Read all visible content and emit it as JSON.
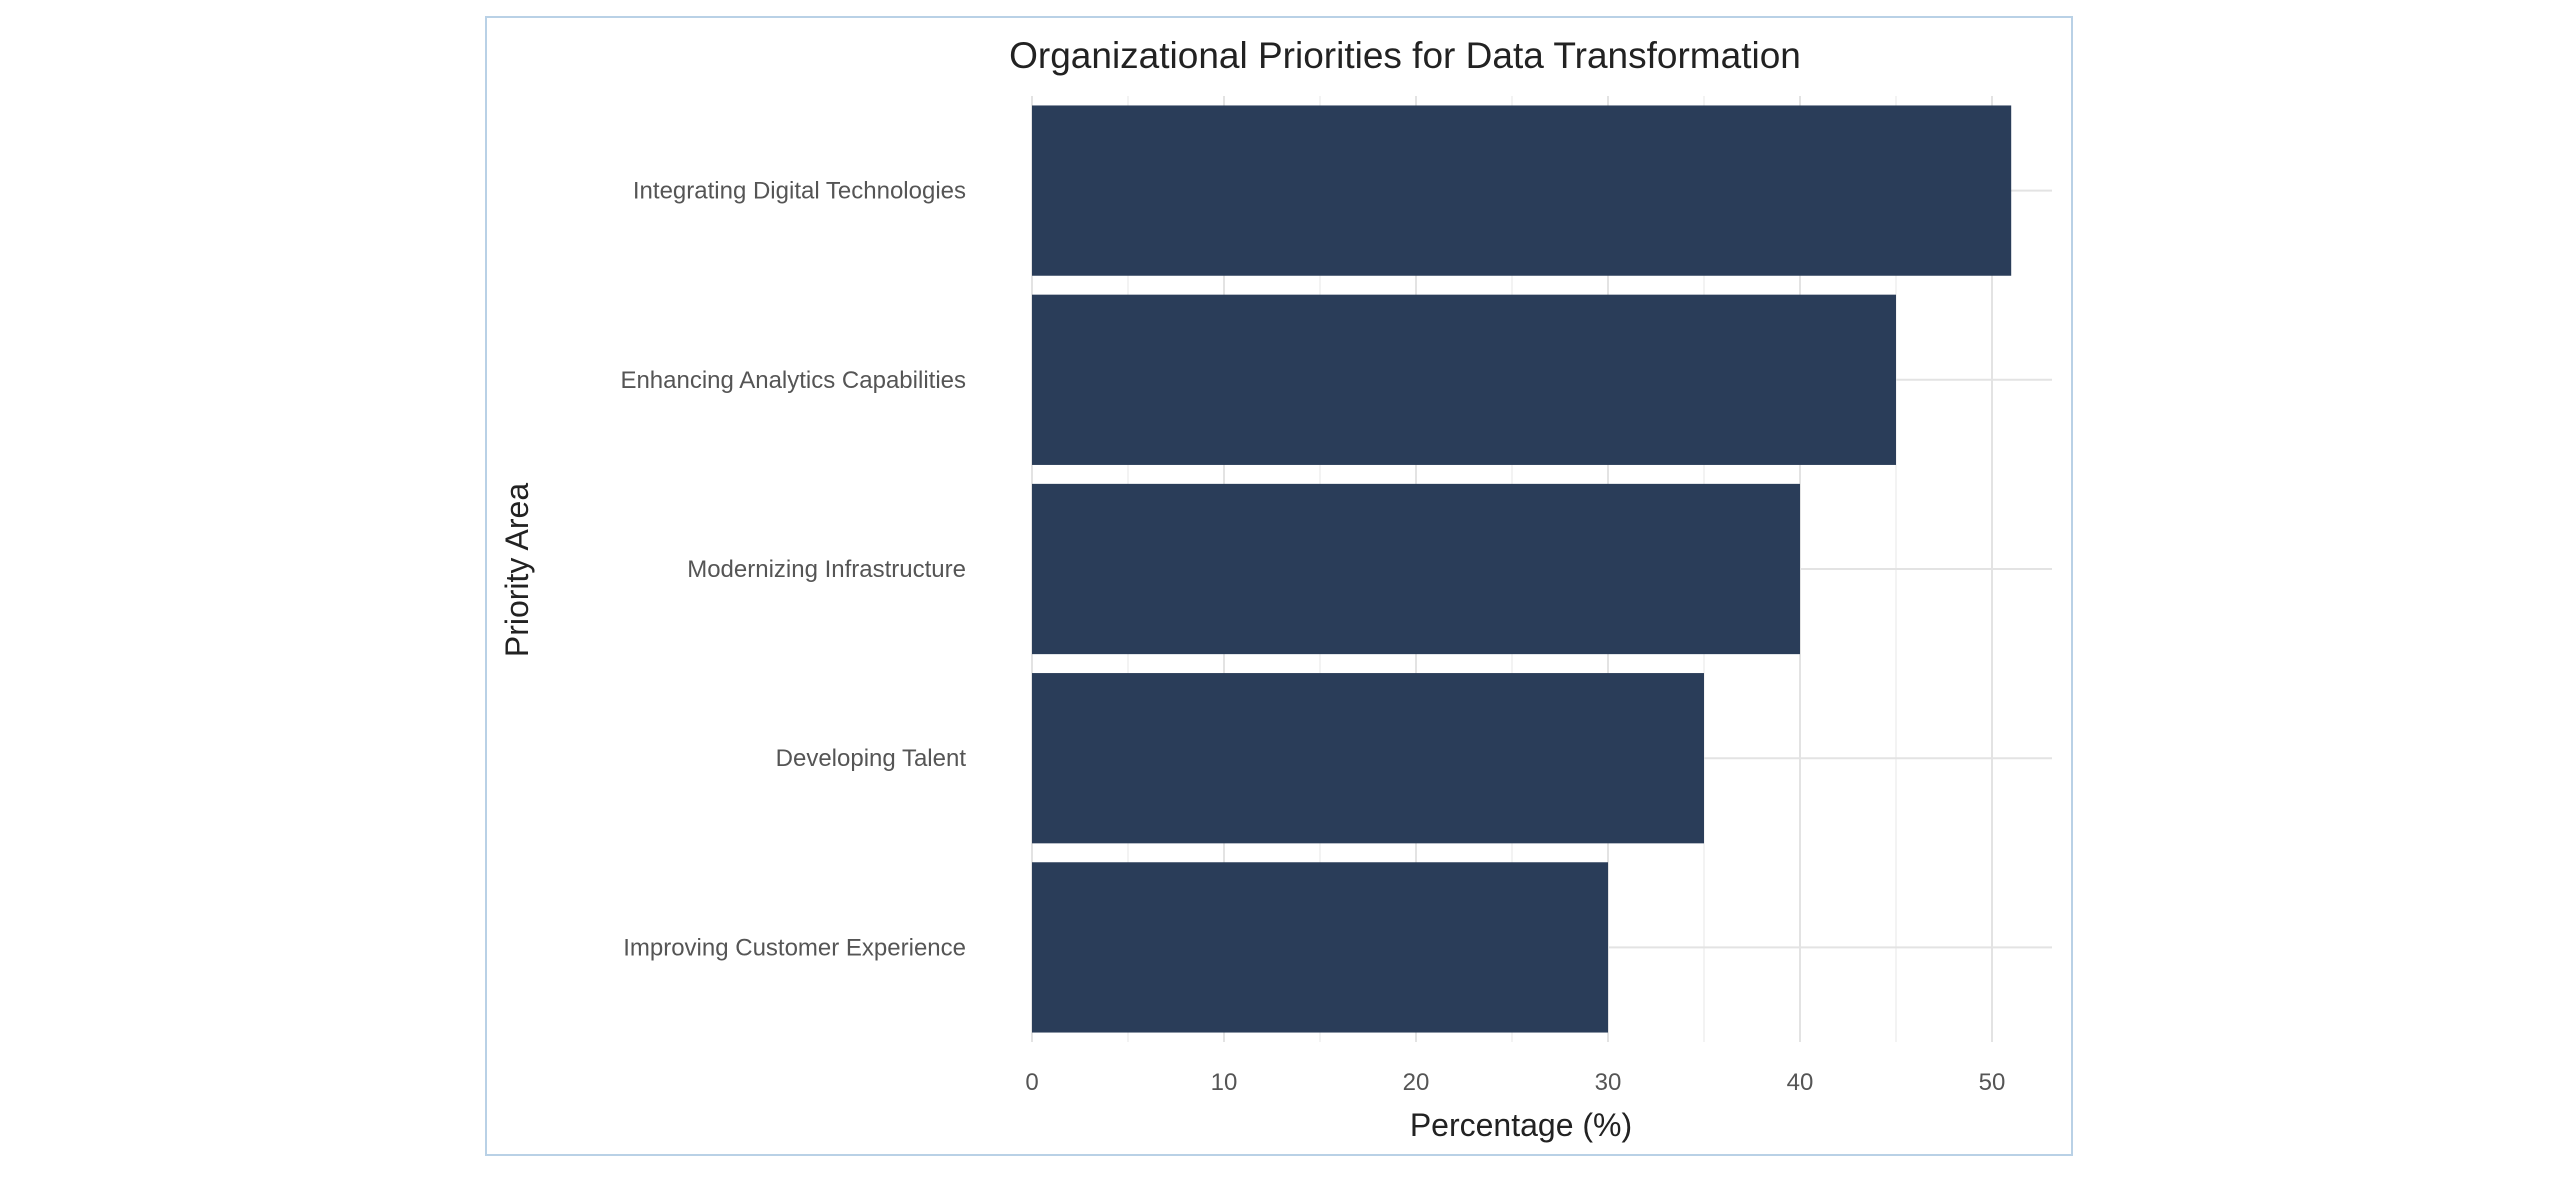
{
  "chart_data": {
    "type": "bar",
    "orientation": "horizontal",
    "title": "Organizational Priorities for Data Transformation",
    "xlabel": "Percentage (%)",
    "ylabel": "Priority Area",
    "categories": [
      "Integrating Digital Technologies",
      "Enhancing Analytics Capabilities",
      "Modernizing Infrastructure",
      "Developing Talent",
      "Improving Customer Experience"
    ],
    "values": [
      51,
      45,
      40,
      35,
      30
    ],
    "x_ticks": [
      0,
      10,
      20,
      30,
      40,
      50
    ],
    "xlim": [
      0,
      53.5
    ],
    "grid": true,
    "bar_color": "#2a3d59"
  }
}
